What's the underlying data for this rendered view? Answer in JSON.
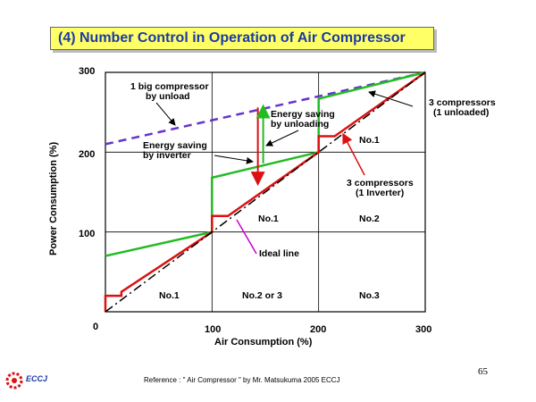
{
  "header": {
    "title": "(4) Number Control in Operation of Air Compressor"
  },
  "footer": {
    "reference": "Reference : \" Air Compressor \" by Mr. Matsukuma 2005 ECCJ",
    "page_number": "65",
    "logo_text": "ECCJ"
  },
  "chart_data": {
    "type": "line",
    "xlabel": "Air Consumption (%)",
    "ylabel": "Power Consumption (%)",
    "xlim": [
      0,
      300
    ],
    "ylim": [
      0,
      300
    ],
    "x_ticks": [
      "0",
      "100",
      "200",
      "300"
    ],
    "y_ticks": [
      "100",
      "200",
      "300"
    ],
    "grid": true,
    "series": [
      {
        "style": "purple-dashed",
        "color": "#6633cc",
        "points": [
          [
            0,
            210
          ],
          [
            300,
            300
          ]
        ]
      },
      {
        "style": "green-solid",
        "color": "#22bb22",
        "points": [
          [
            0,
            70
          ],
          [
            100,
            100
          ],
          [
            100,
            168
          ],
          [
            200,
            200
          ],
          [
            200,
            267
          ],
          [
            300,
            300
          ]
        ]
      },
      {
        "style": "red-solid",
        "color": "#dd1111",
        "points": [
          [
            0,
            0
          ],
          [
            0,
            20
          ],
          [
            15,
            20
          ],
          [
            15,
            25
          ],
          [
            100,
            100
          ],
          [
            100,
            120
          ],
          [
            115,
            120
          ],
          [
            200,
            200
          ],
          [
            200,
            220
          ],
          [
            215,
            220
          ],
          [
            300,
            300
          ]
        ]
      },
      {
        "style": "black-dashdot",
        "color": "#000000",
        "points": [
          [
            0,
            0
          ],
          [
            300,
            300
          ]
        ]
      }
    ],
    "arrows": [
      {
        "color": "#dd1111",
        "from": [
          143,
          256
        ],
        "to": [
          143,
          160
        ]
      },
      {
        "color": "#22bb22",
        "from": [
          148,
          186
        ],
        "to": [
          148,
          258
        ]
      }
    ],
    "annotations": {
      "big_compressor": [
        "1 big compressor",
        "by unload"
      ],
      "energy_unloading": [
        "Energy saving",
        "by unloading"
      ],
      "energy_inverter": [
        "Energy saving",
        "by inverter"
      ],
      "three_unloaded": [
        "3 compressors",
        "(1 unloaded)"
      ],
      "three_inverter": [
        "3 compressors",
        "(1 Inverter)"
      ],
      "ideal_line": "Ideal line"
    },
    "regions": {
      "r1": "No.1",
      "r2": "No.2 or 3",
      "r3": "No.3",
      "r4": "No.1",
      "r5": "No.2",
      "r6": "No.1"
    }
  }
}
